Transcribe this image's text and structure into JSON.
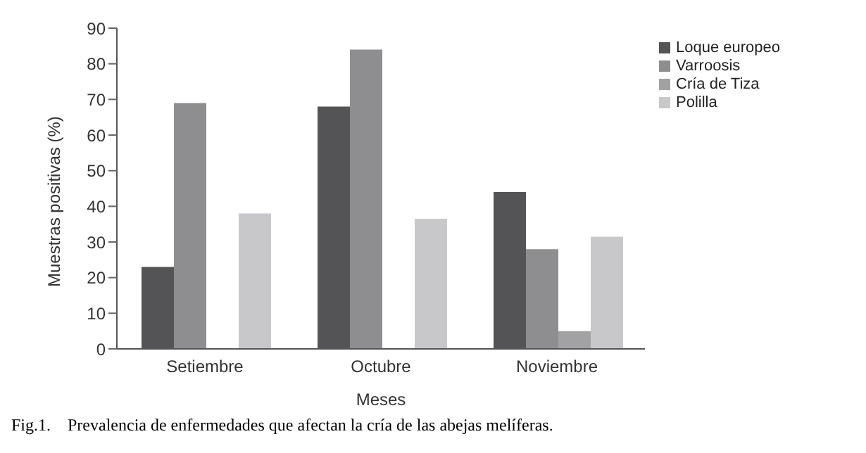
{
  "chart_data": {
    "type": "bar",
    "xlabel": "Meses",
    "ylabel": "Muestras positivas (%)",
    "categories": [
      "Setiembre",
      "Octubre",
      "Noviembre"
    ],
    "series": [
      {
        "name": "Loque europeo",
        "color": "#545456",
        "values": [
          23,
          68,
          44
        ]
      },
      {
        "name": "Varroosis",
        "color": "#8e8e90",
        "values": [
          69,
          84,
          28
        ]
      },
      {
        "name": "Cría de Tiza",
        "color": "#a2a2a4",
        "values": [
          null,
          null,
          5
        ]
      },
      {
        "name": "Polilla",
        "color": "#c8c8ca",
        "values": [
          38,
          36.5,
          31.5
        ]
      }
    ],
    "ylim": [
      0,
      90
    ],
    "yticks": [
      0,
      10,
      20,
      30,
      40,
      50,
      60,
      70,
      80,
      90
    ],
    "grid": false,
    "legend": "top right",
    "annotations": [
      "Fig.1.    Prevalencia de enfermedades que afectan la cría de las abejas melíferas."
    ]
  }
}
